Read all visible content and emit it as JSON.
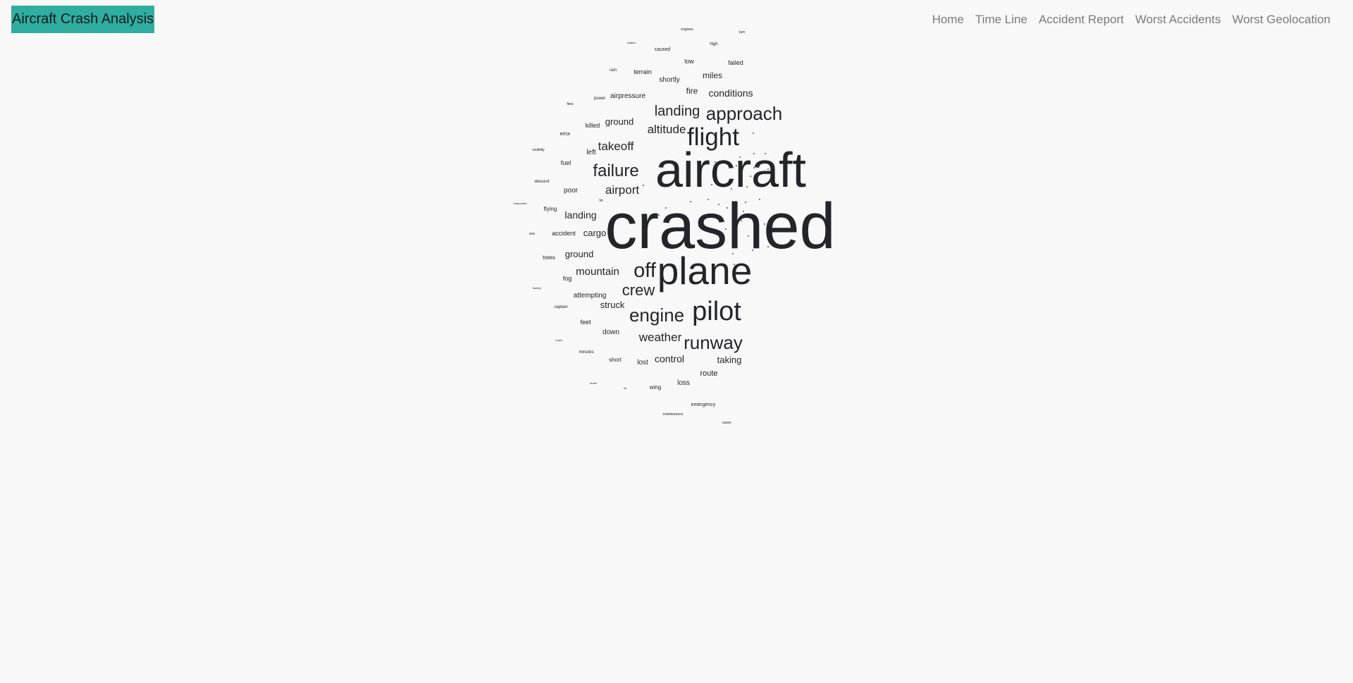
{
  "brand": "Aircraft Crash Analysis",
  "nav": [
    "Home",
    "Time Line",
    "Accident Report",
    "Worst Accidents",
    "Worst Geolocation"
  ],
  "wordcloud": [
    {
      "text": "crashed",
      "weight": 100
    },
    {
      "text": "aircraft",
      "weight": 82
    },
    {
      "text": "plane",
      "weight": 66
    },
    {
      "text": "pilot",
      "weight": 48
    },
    {
      "text": "flight",
      "weight": 44
    },
    {
      "text": "off",
      "weight": 40
    },
    {
      "text": "approach",
      "weight": 36
    },
    {
      "text": "runway",
      "weight": 34
    },
    {
      "text": "engine",
      "weight": 33
    },
    {
      "text": "failure",
      "weight": 31
    },
    {
      "text": "crew",
      "weight": 29
    },
    {
      "text": "landing",
      "weight": 27
    },
    {
      "text": "weather",
      "weight": 22
    },
    {
      "text": "airport",
      "weight": 22
    },
    {
      "text": "takeoff",
      "weight": 21
    },
    {
      "text": "altitude",
      "weight": 21
    },
    {
      "text": "mountain",
      "weight": 20
    },
    {
      "text": "landing",
      "weight": 19
    },
    {
      "text": "conditions",
      "weight": 19
    },
    {
      "text": "control",
      "weight": 19
    },
    {
      "text": "ground",
      "weight": 18
    },
    {
      "text": "taking",
      "weight": 18
    },
    {
      "text": "ground",
      "weight": 17
    },
    {
      "text": "cargo",
      "weight": 17
    },
    {
      "text": "struck",
      "weight": 17
    },
    {
      "text": "miles",
      "weight": 15
    },
    {
      "text": "route",
      "weight": 15
    },
    {
      "text": "fire",
      "weight": 15
    },
    {
      "text": "shortly",
      "weight": 12
    },
    {
      "text": "attempting",
      "weight": 12
    },
    {
      "text": "airpressure",
      "weight": 12
    },
    {
      "text": "poor",
      "weight": 12
    },
    {
      "text": "left",
      "weight": 12
    },
    {
      "text": "loss",
      "weight": 12
    },
    {
      "text": "down",
      "weight": 12
    },
    {
      "text": "accident",
      "weight": 11
    },
    {
      "text": "terrain",
      "weight": 10
    },
    {
      "text": "low",
      "weight": 10
    },
    {
      "text": "failed",
      "weight": 10
    },
    {
      "text": "killed",
      "weight": 10
    },
    {
      "text": "lost",
      "weight": 10
    },
    {
      "text": "fog",
      "weight": 10
    },
    {
      "text": "feet",
      "weight": 10
    },
    {
      "text": "fuel",
      "weight": 9
    },
    {
      "text": "short",
      "weight": 9
    },
    {
      "text": "flying",
      "weight": 9
    },
    {
      "text": "wing",
      "weight": 8
    },
    {
      "text": "trees",
      "weight": 8
    },
    {
      "text": "caused",
      "weight": 8
    },
    {
      "text": "emergency",
      "weight": 8
    },
    {
      "text": "error",
      "weight": 8
    },
    {
      "text": "captain",
      "weight": 7
    },
    {
      "text": "descent",
      "weight": 7
    },
    {
      "text": "minutes",
      "weight": 7
    },
    {
      "text": "high",
      "weight": 7
    },
    {
      "text": "power",
      "weight": 7
    },
    {
      "text": "maintenance",
      "weight": 6
    },
    {
      "text": "rain",
      "weight": 6
    },
    {
      "text": "cause",
      "weight": 6
    },
    {
      "text": "hit",
      "weight": 6
    },
    {
      "text": "visibility",
      "weight": 5
    },
    {
      "text": "engines",
      "weight": 5
    },
    {
      "text": "flew",
      "weight": 5
    },
    {
      "text": "turn",
      "weight": 5
    },
    {
      "text": "stalled",
      "weight": 5
    },
    {
      "text": "sea",
      "weight": 5
    },
    {
      "text": "factory",
      "weight": 5
    },
    {
      "text": "crash",
      "weight": 4
    },
    {
      "text": "broke",
      "weight": 4
    },
    {
      "text": "sfr",
      "weight": 4
    },
    {
      "text": "instrument",
      "weight": 4
    }
  ]
}
